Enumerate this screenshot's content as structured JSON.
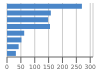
{
  "chart_data": {
    "type": "bar",
    "orientation": "horizontal",
    "categories": [
      null,
      null,
      null,
      null,
      null,
      null,
      null,
      null
    ],
    "values": [
      270,
      158,
      148,
      155,
      62,
      52,
      42,
      32
    ],
    "color": "#4a86c8",
    "xlim": [
      0,
      310
    ],
    "xticks": [
      0,
      50,
      100,
      150,
      200,
      250,
      300
    ],
    "grid": true,
    "tick_labels": "x"
  }
}
